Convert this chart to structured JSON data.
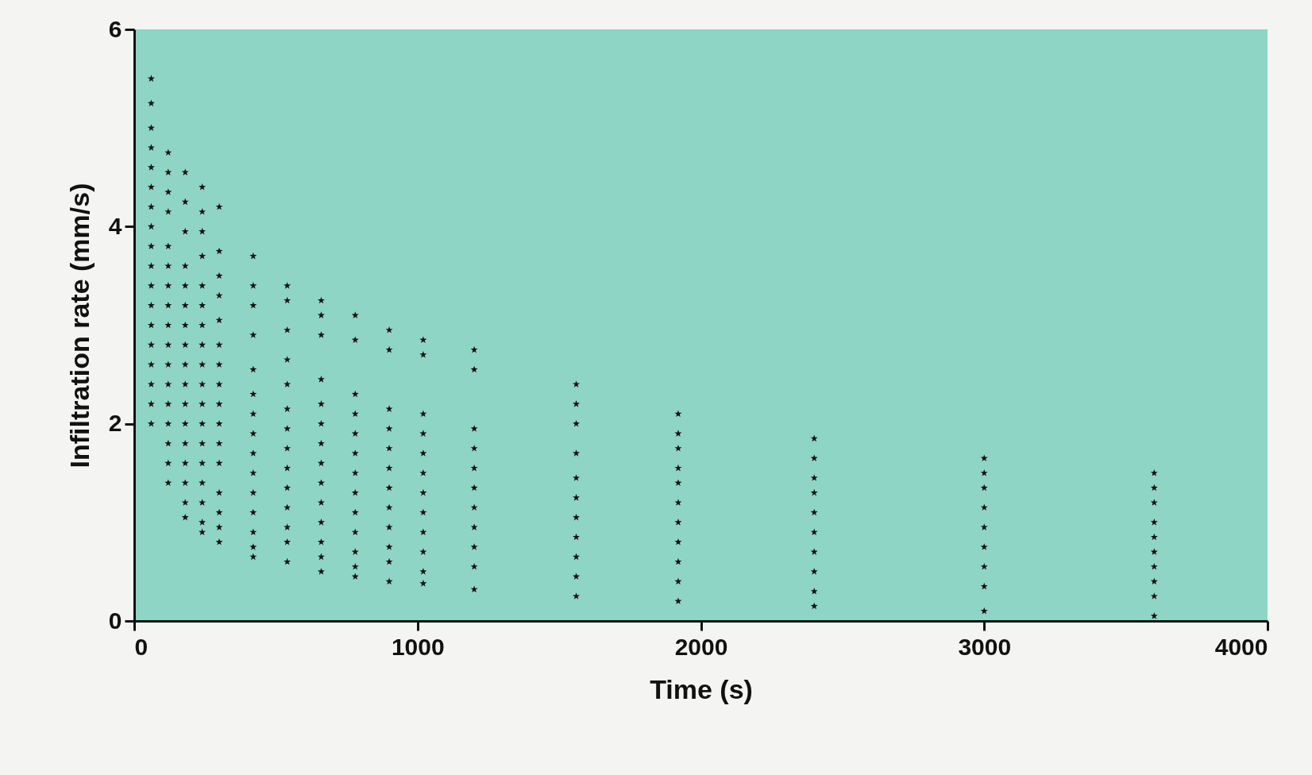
{
  "chart_data": {
    "type": "scatter",
    "xlabel": "Time (s)",
    "ylabel": "Infiltration rate (mm/s)",
    "xlim": [
      0,
      4000
    ],
    "xticks": [
      0,
      1000,
      2000,
      3000,
      4000
    ],
    "ylim": [
      0,
      6
    ],
    "yticks": [
      0,
      2,
      4,
      6
    ],
    "grid": false,
    "legend": false,
    "marker": "star",
    "series": [
      {
        "color": "#111111",
        "x": [
          60,
          60,
          60,
          60,
          60,
          60,
          60,
          60,
          60,
          60,
          60,
          60,
          60,
          60,
          60,
          60,
          60,
          60
        ],
        "values": [
          5.5,
          5.25,
          5.0,
          4.8,
          4.6,
          4.4,
          4.2,
          4.0,
          3.8,
          3.6,
          3.4,
          3.2,
          3.0,
          2.8,
          2.6,
          2.4,
          2.2,
          2.0
        ]
      },
      {
        "color": "#111111",
        "x": [
          120,
          120,
          120,
          120,
          120,
          120,
          120,
          120,
          120,
          120,
          120,
          120,
          120,
          120,
          120,
          120,
          120
        ],
        "values": [
          4.75,
          4.55,
          4.35,
          4.15,
          3.8,
          3.6,
          3.4,
          3.2,
          3.0,
          2.8,
          2.6,
          2.4,
          2.2,
          2.0,
          1.8,
          1.6,
          1.4
        ]
      },
      {
        "color": "#111111",
        "x": [
          180,
          180,
          180,
          180,
          180,
          180,
          180,
          180,
          180,
          180,
          180,
          180,
          180,
          180,
          180,
          180,
          180
        ],
        "values": [
          4.55,
          4.25,
          3.95,
          3.6,
          3.4,
          3.2,
          3.0,
          2.8,
          2.6,
          2.4,
          2.2,
          2.0,
          1.8,
          1.6,
          1.4,
          1.2,
          1.05
        ]
      },
      {
        "color": "#111111",
        "x": [
          240,
          240,
          240,
          240,
          240,
          240,
          240,
          240,
          240,
          240,
          240,
          240,
          240,
          240,
          240,
          240,
          240,
          240
        ],
        "values": [
          4.4,
          4.15,
          3.95,
          3.7,
          3.4,
          3.2,
          3.0,
          2.8,
          2.6,
          2.4,
          2.2,
          2.0,
          1.8,
          1.6,
          1.4,
          1.2,
          1.0,
          0.9
        ]
      },
      {
        "color": "#111111",
        "x": [
          300,
          300,
          300,
          300,
          300,
          300,
          300,
          300,
          300,
          300,
          300,
          300,
          300,
          300,
          300,
          300
        ],
        "values": [
          4.2,
          3.75,
          3.5,
          3.3,
          3.05,
          2.8,
          2.6,
          2.4,
          2.2,
          2.0,
          1.8,
          1.6,
          1.3,
          1.1,
          0.95,
          0.8
        ]
      },
      {
        "color": "#111111",
        "x": [
          420,
          420,
          420,
          420,
          420,
          420,
          420,
          420,
          420,
          420,
          420,
          420,
          420,
          420,
          420
        ],
        "values": [
          3.7,
          3.4,
          3.2,
          2.9,
          2.55,
          2.3,
          2.1,
          1.9,
          1.7,
          1.5,
          1.3,
          1.1,
          0.9,
          0.75,
          0.65
        ]
      },
      {
        "color": "#111111",
        "x": [
          540,
          540,
          540,
          540,
          540,
          540,
          540,
          540,
          540,
          540,
          540,
          540,
          540,
          540
        ],
        "values": [
          3.4,
          3.25,
          2.95,
          2.65,
          2.4,
          2.15,
          1.95,
          1.75,
          1.55,
          1.35,
          1.15,
          0.95,
          0.8,
          0.6
        ]
      },
      {
        "color": "#111111",
        "x": [
          660,
          660,
          660,
          660,
          660,
          660,
          660,
          660,
          660,
          660,
          660,
          660,
          660,
          660
        ],
        "values": [
          3.25,
          3.1,
          2.9,
          2.45,
          2.2,
          2.0,
          1.8,
          1.6,
          1.4,
          1.2,
          1.0,
          0.8,
          0.65,
          0.5
        ]
      },
      {
        "color": "#111111",
        "x": [
          780,
          780,
          780,
          780,
          780,
          780,
          780,
          780,
          780,
          780,
          780,
          780,
          780
        ],
        "values": [
          3.1,
          2.85,
          2.3,
          2.1,
          1.9,
          1.7,
          1.5,
          1.3,
          1.1,
          0.9,
          0.7,
          0.55,
          0.45
        ]
      },
      {
        "color": "#111111",
        "x": [
          900,
          900,
          900,
          900,
          900,
          900,
          900,
          900,
          900,
          900,
          900,
          900
        ],
        "values": [
          2.95,
          2.75,
          2.15,
          1.95,
          1.75,
          1.55,
          1.35,
          1.15,
          0.95,
          0.75,
          0.6,
          0.4
        ]
      },
      {
        "color": "#111111",
        "x": [
          1020,
          1020,
          1020,
          1020,
          1020,
          1020,
          1020,
          1020,
          1020,
          1020,
          1020,
          1020
        ],
        "values": [
          2.85,
          2.7,
          2.1,
          1.9,
          1.7,
          1.5,
          1.3,
          1.1,
          0.9,
          0.7,
          0.5,
          0.38
        ]
      },
      {
        "color": "#111111",
        "x": [
          1200,
          1200,
          1200,
          1200,
          1200,
          1200,
          1200,
          1200,
          1200,
          1200,
          1200
        ],
        "values": [
          2.75,
          2.55,
          1.95,
          1.75,
          1.55,
          1.35,
          1.15,
          0.95,
          0.75,
          0.55,
          0.32
        ]
      },
      {
        "color": "#111111",
        "x": [
          1560,
          1560,
          1560,
          1560,
          1560,
          1560,
          1560,
          1560,
          1560,
          1560,
          1560
        ],
        "values": [
          2.4,
          2.2,
          2.0,
          1.7,
          1.45,
          1.25,
          1.05,
          0.85,
          0.65,
          0.45,
          0.25
        ]
      },
      {
        "color": "#111111",
        "x": [
          1920,
          1920,
          1920,
          1920,
          1920,
          1920,
          1920,
          1920,
          1920,
          1920,
          1920
        ],
        "values": [
          2.1,
          1.9,
          1.75,
          1.55,
          1.4,
          1.2,
          1.0,
          0.8,
          0.6,
          0.4,
          0.2
        ]
      },
      {
        "color": "#111111",
        "x": [
          2400,
          2400,
          2400,
          2400,
          2400,
          2400,
          2400,
          2400,
          2400,
          2400
        ],
        "values": [
          1.85,
          1.65,
          1.45,
          1.3,
          1.1,
          0.9,
          0.7,
          0.5,
          0.3,
          0.15
        ]
      },
      {
        "color": "#111111",
        "x": [
          3000,
          3000,
          3000,
          3000,
          3000,
          3000,
          3000,
          3000,
          3000
        ],
        "values": [
          1.65,
          1.5,
          1.35,
          1.15,
          0.95,
          0.75,
          0.55,
          0.35,
          0.1
        ]
      },
      {
        "color": "#111111",
        "x": [
          3600,
          3600,
          3600,
          3600,
          3600,
          3600,
          3600,
          3600,
          3600,
          3600
        ],
        "values": [
          1.5,
          1.35,
          1.2,
          1.0,
          0.85,
          0.7,
          0.55,
          0.4,
          0.25,
          0.05
        ]
      }
    ]
  }
}
